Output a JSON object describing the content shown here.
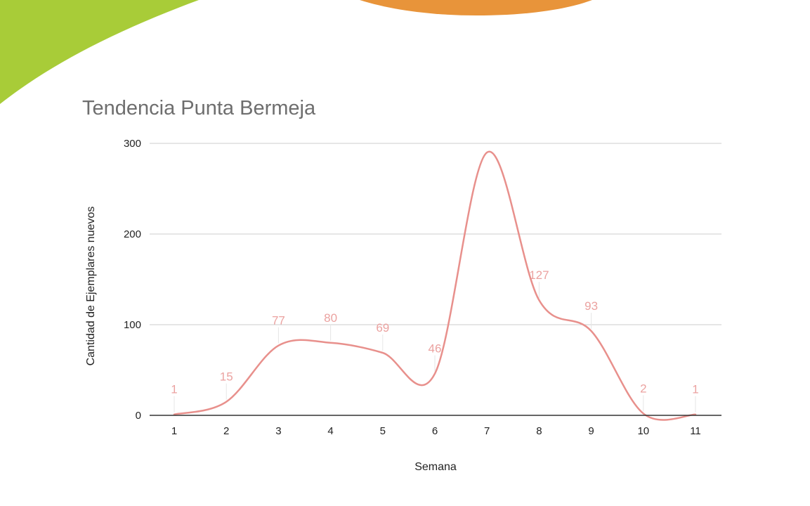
{
  "chart_data": {
    "type": "line",
    "title": "Tendencia Punta Bermeja",
    "xlabel": "Semana",
    "ylabel": "Cantidad de Ejemplares nuevos",
    "categories": [
      "1",
      "2",
      "3",
      "4",
      "5",
      "6",
      "7",
      "8",
      "9",
      "10",
      "11"
    ],
    "series": [
      {
        "values": [
          1,
          15,
          77,
          80,
          69,
          46,
          290,
          127,
          93,
          2,
          1
        ]
      }
    ],
    "data_labels": [
      "1",
      "15",
      "77",
      "80",
      "69",
      "46",
      "",
      "127",
      "93",
      "2",
      "1"
    ],
    "y_ticks": [
      0,
      100,
      200,
      300
    ],
    "ylim": [
      0,
      300
    ],
    "smooth": true,
    "grid": "horizontal",
    "legend": "none",
    "line_color": "#e8908c",
    "label_color": "#eba2a0",
    "gridline_color": "#cccccc"
  },
  "decor": {
    "left_shape_color": "#a8cc38",
    "top_shape_color": "#e8943a"
  }
}
